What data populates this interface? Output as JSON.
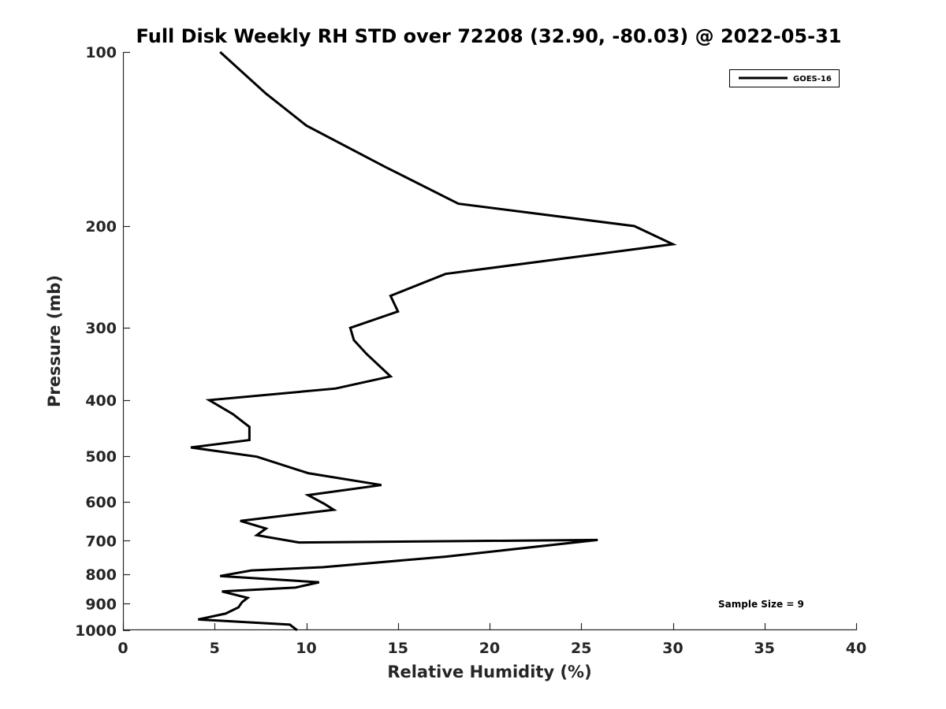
{
  "chart_data": {
    "type": "line",
    "title": "Full Disk Weekly RH STD over 72208 (32.90, -80.03) @ 2022-05-31",
    "xlabel": "Relative Humidity (%)",
    "ylabel": "Pressure (mb)",
    "xlim": [
      0,
      40
    ],
    "ylim": [
      1000,
      100
    ],
    "y_scale": "log",
    "x_ticks": [
      0,
      5,
      10,
      15,
      20,
      25,
      30,
      35,
      40
    ],
    "y_ticks": [
      100,
      200,
      300,
      400,
      500,
      600,
      700,
      800,
      900,
      1000
    ],
    "grid": false,
    "legend_position": "top-right",
    "series": [
      {
        "name": "GOES-16",
        "color": "#000000",
        "x": [
          5.3,
          7.8,
          10.0,
          14.3,
          18.3,
          27.9,
          30.0,
          17.6,
          14.6,
          15.0,
          12.4,
          12.6,
          13.3,
          14.6,
          11.6,
          4.7,
          6.0,
          6.9,
          6.9,
          3.7,
          7.3,
          10.1,
          14.1,
          10.1,
          11.0,
          11.5,
          6.4,
          7.8,
          7.3,
          9.6,
          25.9,
          17.6,
          10.9,
          7.0,
          5.3,
          10.7,
          9.4,
          5.4,
          6.8,
          6.5,
          6.3,
          5.6,
          4.1,
          9.1,
          9.5
        ],
        "y": [
          100,
          118,
          134,
          158,
          183,
          200,
          215,
          242,
          264,
          281,
          300,
          315,
          333,
          364,
          382,
          400,
          423,
          445,
          469,
          483,
          501,
          535,
          561,
          584,
          605,
          619,
          647,
          667,
          685,
          705,
          698,
          746,
          778,
          788,
          806,
          826,
          844,
          857,
          879,
          894,
          913,
          936,
          958,
          978,
          1000
        ]
      }
    ],
    "annotations": [
      "Sample Size = 9"
    ]
  }
}
